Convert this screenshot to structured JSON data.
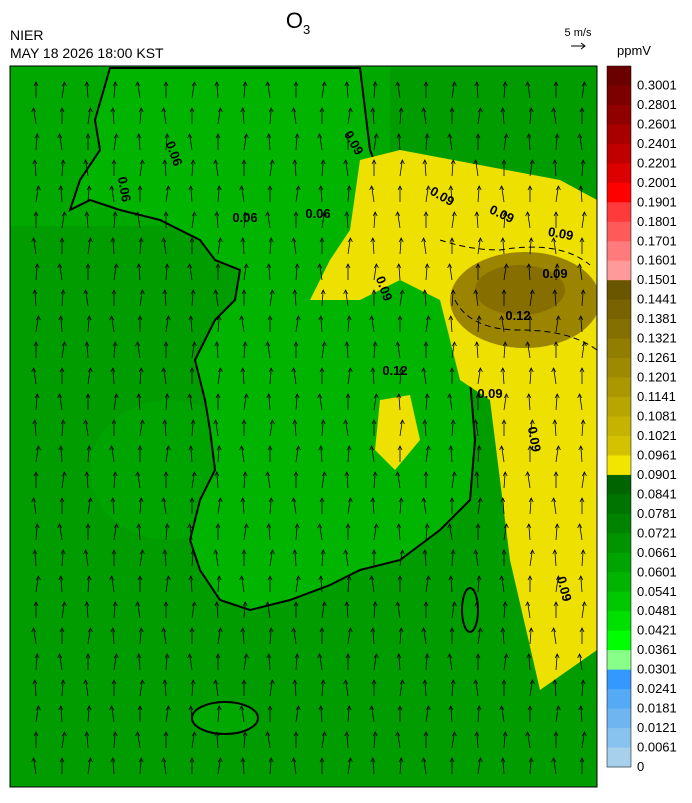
{
  "header": {
    "title": "O",
    "title_subscript": "3",
    "source": "NIER",
    "datetime": "MAY 18 2026 18:00 KST",
    "wind_scale": "5 m/s"
  },
  "colorbar": {
    "unit": "ppmV",
    "levels": [
      0.3001,
      0.2801,
      0.2601,
      0.2401,
      0.2201,
      0.2001,
      0.1901,
      0.1801,
      0.1701,
      0.1601,
      0.1501,
      0.1441,
      0.1381,
      0.1321,
      0.1261,
      0.1201,
      0.1141,
      0.1081,
      0.1021,
      0.0961,
      0.0901,
      0.0841,
      0.0781,
      0.0721,
      0.0661,
      0.0601,
      0.0541,
      0.0481,
      0.0421,
      0.0361,
      0.0301,
      0.0241,
      0.0181,
      0.0121,
      0.0061,
      0
    ],
    "colors": [
      "#6a0000",
      "#7c0000",
      "#900000",
      "#a80000",
      "#c00000",
      "#dc0000",
      "#ff0000",
      "#ff3a3a",
      "#ff5a5a",
      "#ff7a7a",
      "#ff9a9a",
      "#6b5600",
      "#786300",
      "#847000",
      "#917d00",
      "#9e8a00",
      "#ab9800",
      "#b8a500",
      "#c6b300",
      "#d4c200",
      "#f2e600",
      "#006400",
      "#007400",
      "#008400",
      "#009400",
      "#00a400",
      "#00b400",
      "#00c800",
      "#00e000",
      "#00ff00",
      "#88ff88",
      "#3399ff",
      "#55aaf5",
      "#6fb6f0",
      "#88c2ee",
      "#a6d0ec"
    ]
  },
  "map": {
    "contour_labels": [
      "0.06",
      "0.06",
      "0.06",
      "0.06",
      "0.09",
      "0.09",
      "0.09",
      "0.09",
      "0.09",
      "0.09",
      "0.12",
      "0.12",
      "0.09",
      "0.09",
      "0.09"
    ]
  }
}
